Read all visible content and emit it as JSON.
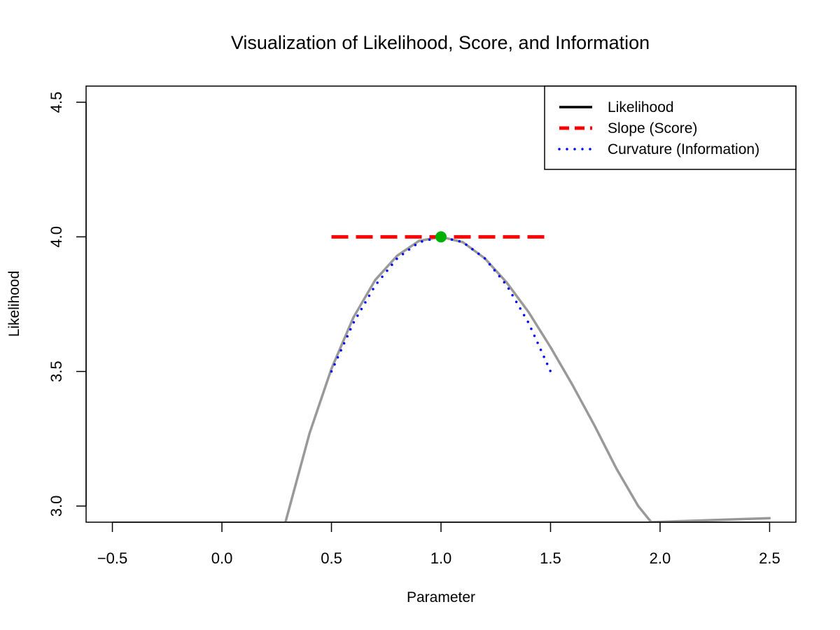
{
  "chart_data": {
    "type": "line",
    "title": "Visualization of Likelihood, Score, and Information",
    "xlabel": "Parameter",
    "ylabel": "Likelihood",
    "xlim": [
      -0.62,
      2.62
    ],
    "ylim": [
      2.94,
      4.56
    ],
    "x_ticks": [
      -0.5,
      0.0,
      0.5,
      1.0,
      1.5,
      2.0,
      2.5
    ],
    "x_tick_labels": [
      "−0.5",
      "0.0",
      "0.5",
      "1.0",
      "1.5",
      "2.0",
      "2.5"
    ],
    "y_ticks": [
      3.0,
      3.5,
      4.0,
      4.5
    ],
    "y_tick_labels": [
      "3.0",
      "3.5",
      "4.0",
      "4.5"
    ],
    "grid": false,
    "legend_position": "top-right",
    "legend": [
      {
        "label": "Likelihood",
        "color": "#000000",
        "style": "solid"
      },
      {
        "label": "Slope (Score)",
        "color": "#ff0000",
        "style": "dashed"
      },
      {
        "label": "Curvature (Information)",
        "color": "#0000ff",
        "style": "dotted"
      }
    ],
    "series": [
      {
        "name": "Likelihood",
        "color": "#999999",
        "x": [
          0.29,
          0.4,
          0.5,
          0.6,
          0.7,
          0.8,
          0.9,
          1.0,
          1.1,
          1.2,
          1.3,
          1.4,
          1.5,
          1.6,
          1.7,
          1.8,
          1.9,
          1.96,
          2.5
        ],
        "y": [
          2.94,
          3.27,
          3.51,
          3.7,
          3.84,
          3.93,
          3.985,
          4.0,
          3.98,
          3.92,
          3.83,
          3.72,
          3.59,
          3.45,
          3.3,
          3.14,
          3.0,
          2.94,
          2.955
        ]
      },
      {
        "name": "Slope (Score)",
        "color": "#ff0000",
        "x": [
          0.5,
          1.5
        ],
        "y": [
          4.0,
          4.0
        ]
      },
      {
        "name": "Curvature (Information)",
        "color": "#0000ff",
        "x": [
          0.5,
          0.6,
          0.7,
          0.8,
          0.9,
          1.0,
          1.1,
          1.2,
          1.3,
          1.4,
          1.5
        ],
        "y": [
          3.5,
          3.68,
          3.82,
          3.92,
          3.98,
          4.0,
          3.98,
          3.92,
          3.82,
          3.68,
          3.5
        ]
      }
    ],
    "highlight_point": {
      "x": 1.0,
      "y": 4.0,
      "color": "#00b000"
    }
  }
}
